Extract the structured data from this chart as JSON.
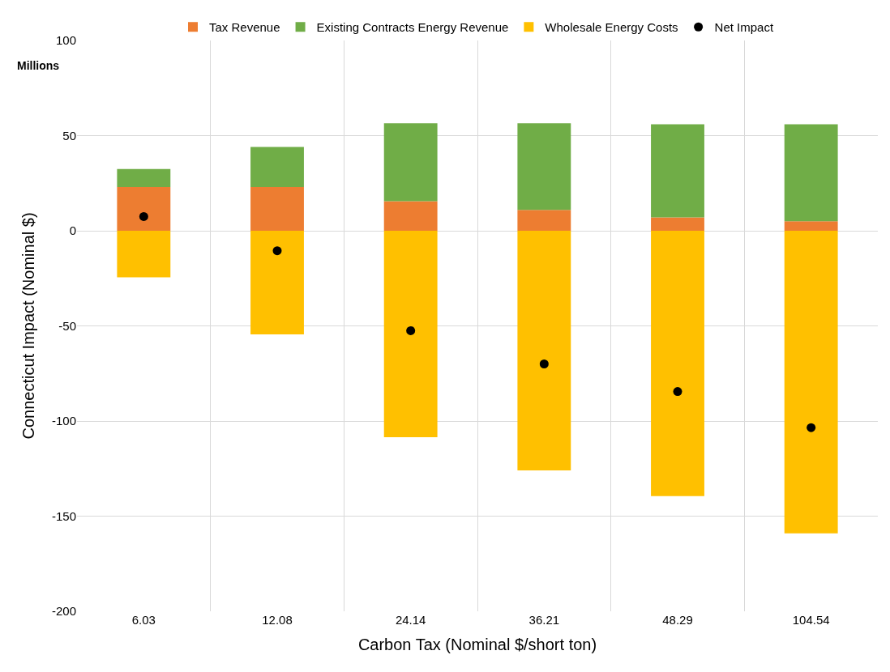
{
  "chart_data": {
    "type": "bar",
    "stacked": true,
    "xlabel": "Carbon Tax (Nominal $/short ton)",
    "ylabel": "Connecticut Impact (Nominal $)",
    "annotations": [
      "Millions"
    ],
    "categories": [
      "6.03",
      "12.08",
      "24.14",
      "36.21",
      "48.29",
      "104.54"
    ],
    "series": [
      {
        "name": "Tax Revenue",
        "color": "#ed7d31",
        "values": [
          23,
          23,
          15.5,
          11,
          7,
          5
        ]
      },
      {
        "name": "Existing Contracts Energy Revenue",
        "color": "#70ad47",
        "values": [
          9.5,
          21,
          41,
          45.5,
          49,
          51
        ]
      },
      {
        "name": "Wholesale Energy Costs",
        "color": "#ffc000",
        "values": [
          -24.5,
          -54.5,
          -108.5,
          -126,
          -139.5,
          -159
        ]
      },
      {
        "name": "Net Impact",
        "type": "scatter",
        "marker": "circle",
        "color": "#000000",
        "values": [
          7.5,
          -10.5,
          -52.5,
          -70,
          -84.5,
          -103.5
        ]
      }
    ],
    "ylim": [
      -200,
      100
    ],
    "yticks": [
      -200,
      -150,
      -100,
      -50,
      0,
      50,
      100
    ],
    "grid": true,
    "legend": "top"
  }
}
